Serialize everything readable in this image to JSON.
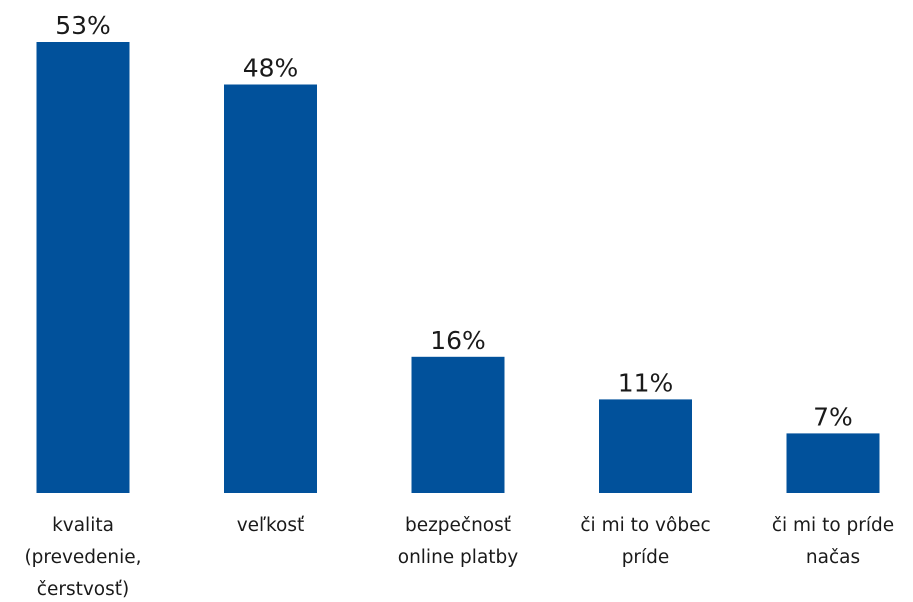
{
  "chart_data": {
    "type": "bar",
    "categories": [
      [
        "kvalita",
        "(prevedenie,",
        "čerstvosť)"
      ],
      [
        "veľkosť"
      ],
      [
        "bezpečnosť",
        "online platby"
      ],
      [
        "či mi to vôbec",
        "príde"
      ],
      [
        "či mi to príde",
        "načas"
      ]
    ],
    "values": [
      53,
      48,
      16,
      11,
      7
    ],
    "value_labels": [
      "53%",
      "48%",
      "16%",
      "11%",
      "7%"
    ],
    "unit": "%",
    "ylim": [
      0,
      53
    ],
    "title": "",
    "xlabel": "",
    "ylabel": "",
    "grid": false,
    "legend": "none",
    "bar_color": "#01519b"
  }
}
